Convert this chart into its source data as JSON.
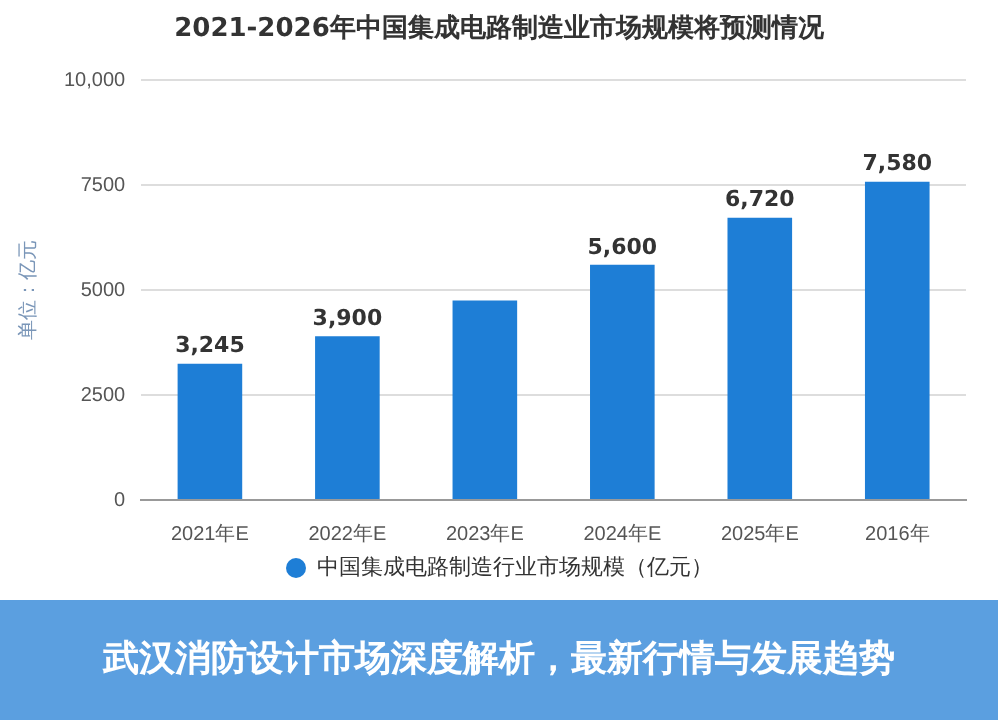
{
  "chart_data": {
    "type": "bar",
    "title": "2021-2026年中国集成电路制造业市场规模将预测情况",
    "ylabel": "单位：亿元",
    "categories": [
      "2021年E",
      "2022年E",
      "2023年E",
      "2024年E",
      "2025年E",
      "2016年"
    ],
    "series": [
      {
        "name": "中国集成电路制造行业市场规模（亿元）",
        "color": "#1e7ed6",
        "values": [
          3245,
          3900,
          4750,
          5600,
          6720,
          7580
        ],
        "value_labels": [
          "3,245",
          "3,900",
          null,
          "5,600",
          "6,720",
          "7,580"
        ]
      }
    ],
    "ylim": [
      0,
      10000
    ],
    "yticks": [
      0,
      2500,
      5000,
      7500,
      {
        "value": 10000,
        "label": "10,000"
      }
    ],
    "grid": "y",
    "legend": "bottom",
    "marker": "circle",
    "annotations": [
      "武汉消防设计市场深度解析，最新行情与发展趋势"
    ]
  }
}
